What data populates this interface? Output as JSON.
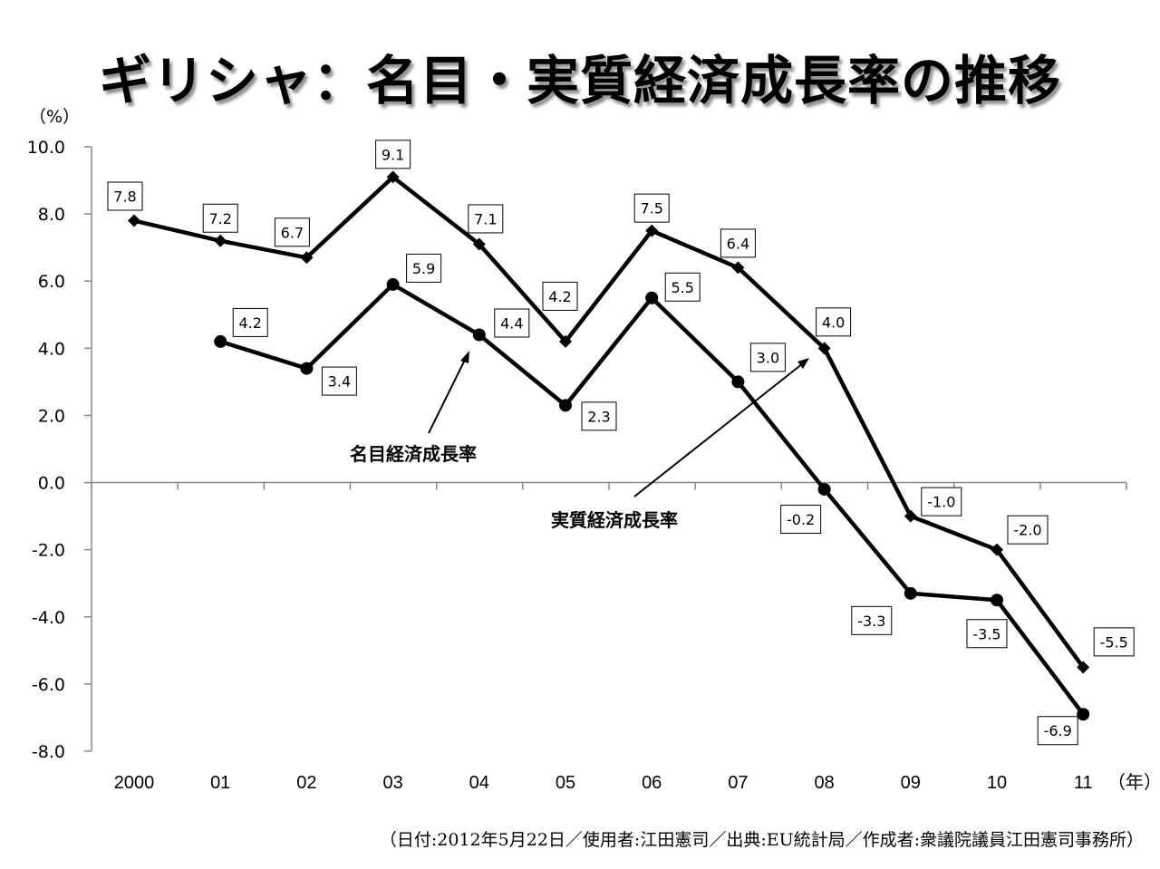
{
  "title": "ギリシャ：名目・実質経済成長率の推移",
  "y_unit_label": "（%）",
  "x_unit_label": "（年）",
  "footer": "（日付:2012年5月22日／使用者:江田憲司／出典:EU統計局／作成者:衆議院議員江田憲司事務所）",
  "annotations": {
    "nominal_label": "名目経済成長率",
    "real_label": "実質経済成長率"
  },
  "chart_data": {
    "type": "line",
    "title": "ギリシャ：名目・実質経済成長率の推移",
    "xlabel": "（年）",
    "ylabel": "（%）",
    "categories": [
      "2000",
      "01",
      "02",
      "03",
      "04",
      "05",
      "06",
      "07",
      "08",
      "09",
      "10",
      "11"
    ],
    "y_ticks": [
      "10.0",
      "8.0",
      "6.0",
      "4.0",
      "2.0",
      "0.0",
      "-2.0",
      "-4.0",
      "-6.0",
      "-8.0"
    ],
    "ylim": [
      -8.0,
      10.0
    ],
    "grid": false,
    "legend": "none (inline arrow annotations)",
    "series": [
      {
        "name": "名目経済成長率",
        "marker": "diamond",
        "values": [
          7.8,
          7.2,
          6.7,
          9.1,
          7.1,
          4.2,
          7.5,
          6.4,
          4.0,
          -1.0,
          -2.0,
          -5.5
        ],
        "labels": [
          "7.8",
          "7.2",
          "6.7",
          "9.1",
          "7.1",
          "4.2",
          "7.5",
          "6.4",
          "4.0",
          "-1.0",
          "-2.0",
          "-5.5"
        ]
      },
      {
        "name": "実質経済成長率",
        "marker": "circle",
        "values": [
          null,
          4.2,
          3.4,
          5.9,
          4.4,
          2.3,
          5.5,
          3.0,
          -0.2,
          -3.3,
          -3.5,
          -6.9
        ],
        "labels": [
          null,
          "4.2",
          "3.4",
          "5.9",
          "4.4",
          "2.3",
          "5.5",
          "3.0",
          "-0.2",
          "-3.3",
          "-3.5",
          "-6.9"
        ]
      }
    ]
  },
  "colors": {
    "line": "#000000",
    "axis": "#888888",
    "background": "#ffffff"
  }
}
